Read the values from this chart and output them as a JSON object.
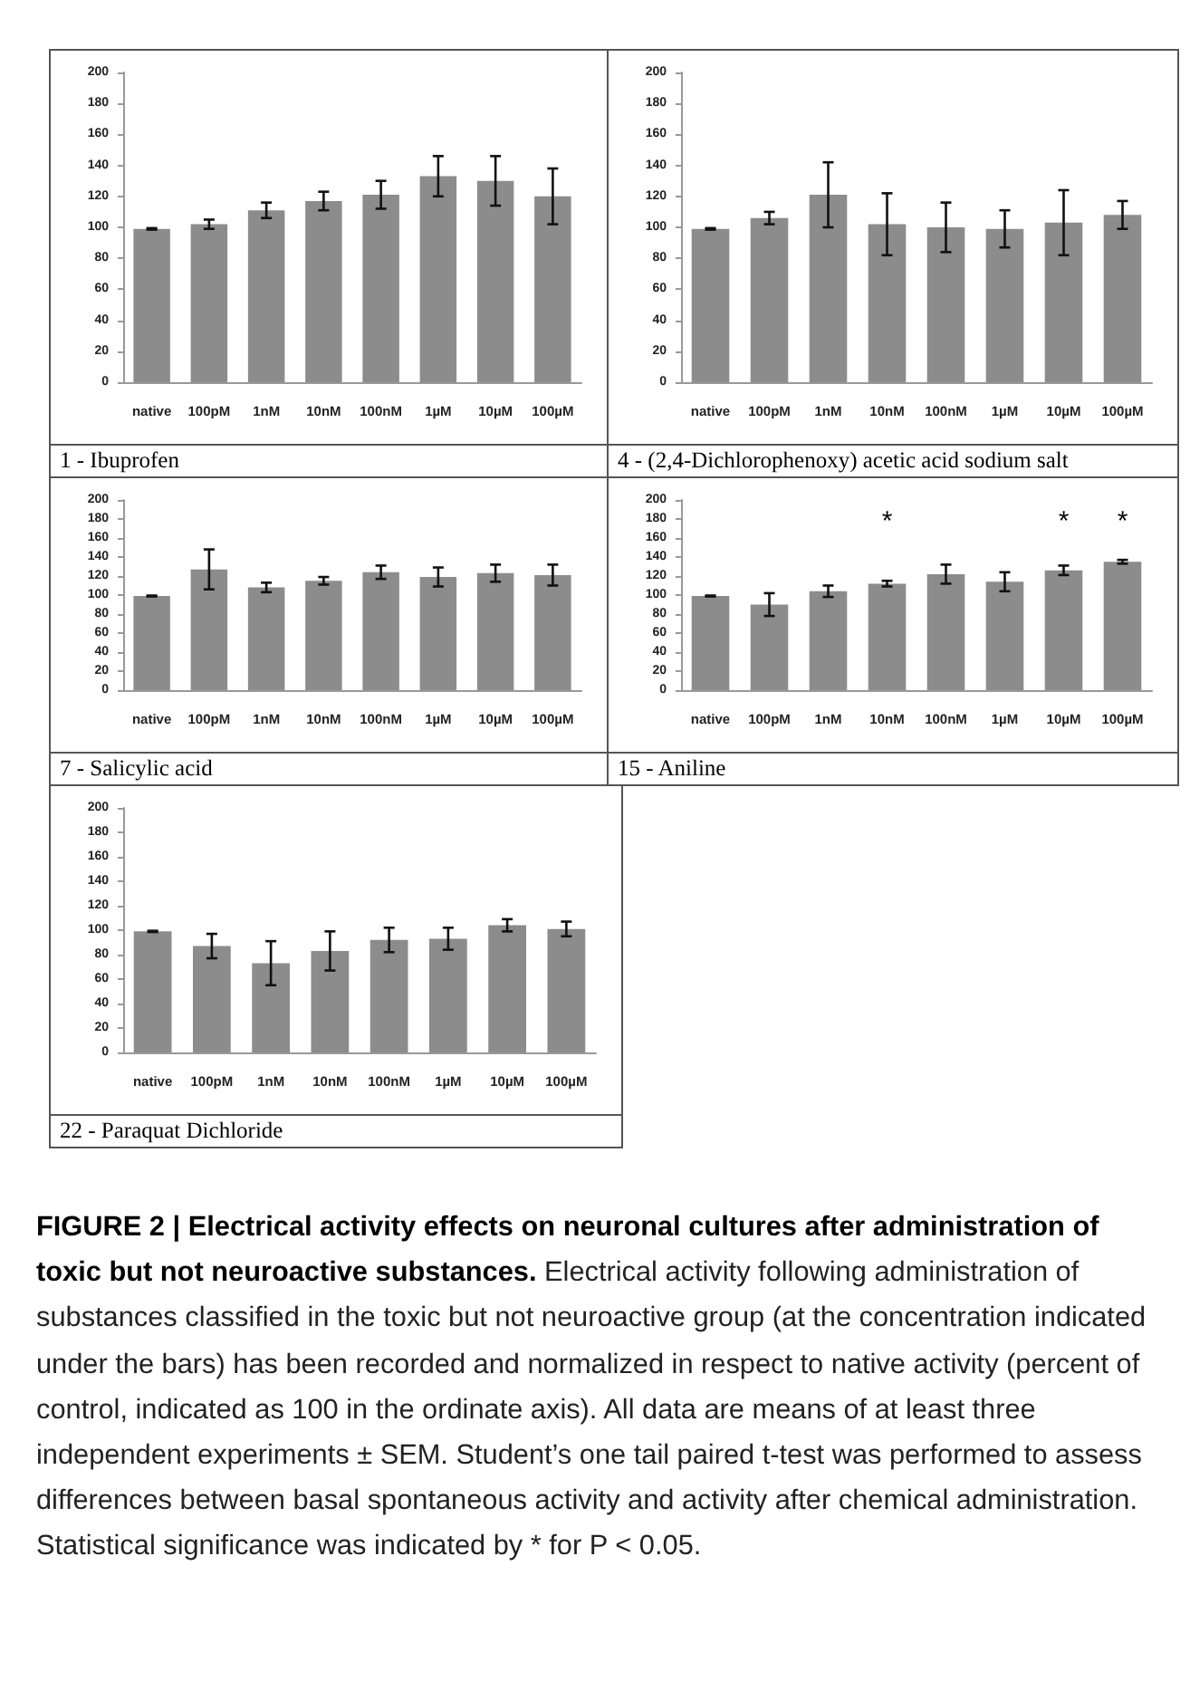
{
  "chart_data": [
    {
      "type": "bar",
      "title": "1 - Ibuprofen",
      "categories": [
        "native",
        "100pM",
        "1nM",
        "10nM",
        "100nM",
        "1µM",
        "10µM",
        "100µM"
      ],
      "color": "#8c8c8c",
      "values": [
        99,
        102,
        111,
        117,
        121,
        133,
        130,
        120
      ],
      "errors": [
        0.5,
        3,
        5,
        6,
        9,
        13,
        16,
        18
      ],
      "ylim": [
        0,
        200
      ],
      "yticks": [
        0,
        20,
        40,
        60,
        80,
        100,
        120,
        140,
        160,
        180,
        200
      ]
    },
    {
      "type": "bar",
      "title": "4 - (2,4-Dichlorophenoxy) acetic acid sodium salt",
      "categories": [
        "native",
        "100pM",
        "1nM",
        "10nM",
        "100nM",
        "1µM",
        "10µM",
        "100µM"
      ],
      "color": "#8c8c8c",
      "values": [
        99,
        106,
        121,
        102,
        100,
        99,
        103,
        108
      ],
      "errors": [
        0.5,
        4,
        21,
        20,
        16,
        12,
        21,
        9
      ],
      "ylim": [
        0,
        200
      ],
      "yticks": [
        0,
        20,
        40,
        60,
        80,
        100,
        120,
        140,
        160,
        180,
        200
      ]
    },
    {
      "type": "bar",
      "title": "7 - Salicylic acid",
      "categories": [
        "native",
        "100pM",
        "1nM",
        "10nM",
        "100nM",
        "1µM",
        "10µM",
        "100µM"
      ],
      "color": "#8c8c8c",
      "values": [
        99,
        127,
        108,
        115,
        124,
        119,
        123,
        121
      ],
      "errors": [
        0.5,
        21,
        5,
        4,
        7,
        10,
        9,
        11
      ],
      "ylim": [
        0,
        200
      ],
      "yticks": [
        0,
        20,
        40,
        60,
        80,
        100,
        120,
        140,
        160,
        180,
        200
      ]
    },
    {
      "type": "bar",
      "title": "15 - Aniline",
      "categories": [
        "native",
        "100pM",
        "1nM",
        "10nM",
        "100nM",
        "1µM",
        "10µM",
        "100µM"
      ],
      "color": "#8c8c8c",
      "values": [
        99,
        90,
        104,
        112,
        122,
        114,
        126,
        135
      ],
      "errors": [
        0.5,
        12,
        6,
        3,
        10,
        10,
        5,
        2
      ],
      "ylim": [
        0,
        200
      ],
      "yticks": [
        0,
        20,
        40,
        60,
        80,
        100,
        120,
        140,
        160,
        180,
        200
      ],
      "value_labels": [
        null,
        null,
        null,
        "*",
        null,
        null,
        "*",
        "*"
      ]
    },
    {
      "type": "bar",
      "title": "22 - Paraquat Dichloride",
      "categories": [
        "native",
        "100pM",
        "1nM",
        "10nM",
        "100nM",
        "1µM",
        "10µM",
        "100µM"
      ],
      "color": "#8c8c8c",
      "values": [
        99,
        87,
        73,
        83,
        92,
        93,
        104,
        101
      ],
      "errors": [
        0.5,
        10,
        18,
        16,
        10,
        9,
        5,
        6
      ],
      "ylim": [
        0,
        200
      ],
      "yticks": [
        0,
        20,
        40,
        60,
        80,
        100,
        120,
        140,
        160,
        180,
        200
      ]
    },
    {
      "type": "other",
      "annotations": [
        "FIGURE 2 | Electrical activity effects on neuronal cultures after administration of toxic but not neuroactive substances.",
        "Electrical activity following administration of substances classified in the toxic but not neuroactive group (at the concentration indicated under the bars) has been recorded and normalized in respect to native activity (percent of control, indicated as 100 in the ordinate axis). All data are means of at least three independent experiments ± SEM. Student’s one tail paired t-test was performed to assess differences between basal spontaneous activity and activity after chemical administration. Statistical significance was indicated by * for P < 0.05."
      ]
    }
  ]
}
